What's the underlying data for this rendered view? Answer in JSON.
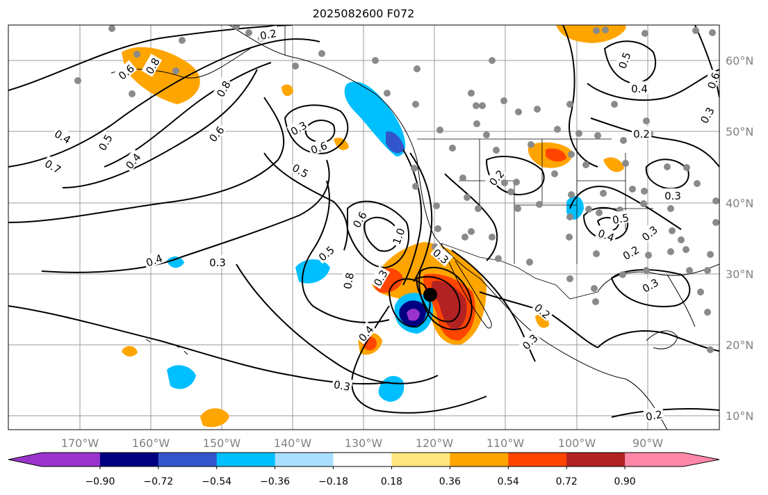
{
  "title": "2025082600 F072",
  "lon_labels": [
    "170°W",
    "160°W",
    "150°W",
    "140°W",
    "130°W",
    "120°W",
    "110°W",
    "100°W",
    "90°W"
  ],
  "lat_labels": [
    "60°N",
    "50°N",
    "40°N",
    "30°N",
    "20°N",
    "10°N"
  ],
  "colorbar": {
    "ticks": [
      "−0.90",
      "−0.72",
      "−0.54",
      "−0.36",
      "−0.18",
      "0.18",
      "0.36",
      "0.54",
      "0.72",
      "0.90"
    ],
    "colors": [
      "#9933cc",
      "#000080",
      "#3355cc",
      "#00bfff",
      "#aadeff",
      "#ffffff",
      "#ffe680",
      "#ffa500",
      "#ff4500",
      "#b22222",
      "#ff88aa"
    ]
  },
  "contour_labels": [
    "0.2",
    "0.6",
    "0.8",
    "0.8",
    "0.4",
    "0.5",
    "0.6",
    "0.7",
    "0.4",
    "0.3",
    "0.6",
    "0.5",
    "0.4",
    "0.3",
    "0.3",
    "0.6",
    "1.0",
    "0.8",
    "0.5",
    "0.4",
    "0.3",
    "0.2",
    "0.3",
    "0.2",
    "0.3",
    "0.5",
    "0.4",
    "0.2",
    "0.3",
    "0.2",
    "0.3",
    "0.4",
    "0.3",
    "0.2",
    "0.5",
    "0.6",
    "0.3"
  ]
}
